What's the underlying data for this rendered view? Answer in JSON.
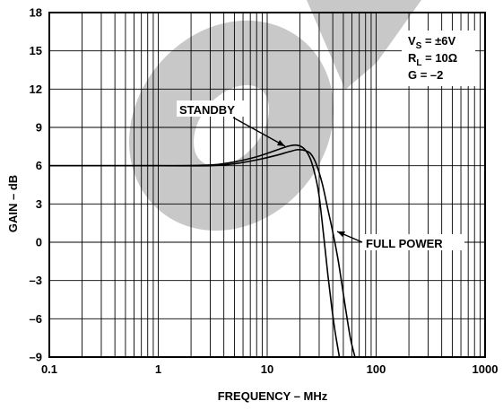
{
  "chart_data": {
    "type": "line",
    "xscale": "log",
    "xlim": [
      0.1,
      1000
    ],
    "ylim": [
      -9,
      18
    ],
    "grid": true,
    "xlabel": "FREQUENCY – MHz",
    "ylabel": "GAIN – dB",
    "x_ticks": [
      "0.1",
      "1",
      "10",
      "100",
      "1000"
    ],
    "y_ticks": [
      "18",
      "15",
      "12",
      "9",
      "6",
      "3",
      "0",
      "–3",
      "–6",
      "–9"
    ],
    "conditions": {
      "vs": {
        "symbol": "V",
        "sub": "S",
        "rest": " = ±6V"
      },
      "rl": {
        "symbol": "R",
        "sub": "L",
        "rest": " = 10Ω"
      },
      "g": "G = –2"
    },
    "series": [
      {
        "name": "STANDBY",
        "x": [
          0.1,
          1,
          3,
          5,
          8,
          12,
          16,
          19,
          22,
          25,
          28,
          30,
          33,
          36,
          39,
          42,
          46
        ],
        "y": [
          6.0,
          6.0,
          6.05,
          6.3,
          6.7,
          7.2,
          7.55,
          7.6,
          7.3,
          6.5,
          5.0,
          3.6,
          0.5,
          -2.5,
          -5.0,
          -7.0,
          -9.0
        ]
      },
      {
        "name": "FULL POWER",
        "x": [
          0.1,
          1,
          3,
          5,
          8,
          12,
          16,
          19,
          22,
          25,
          28,
          32,
          36,
          40,
          45,
          52,
          58,
          64
        ],
        "y": [
          6.0,
          6.0,
          6.0,
          6.15,
          6.45,
          6.8,
          7.1,
          7.25,
          7.2,
          6.95,
          6.2,
          4.6,
          2.6,
          0.8,
          -1.5,
          -5.0,
          -7.5,
          -9.0
        ]
      }
    ],
    "annotations": [
      {
        "text": "STANDBY",
        "points_to": "STANDBY"
      },
      {
        "text": "FULL POWER",
        "points_to": "FULL POWER"
      }
    ]
  }
}
